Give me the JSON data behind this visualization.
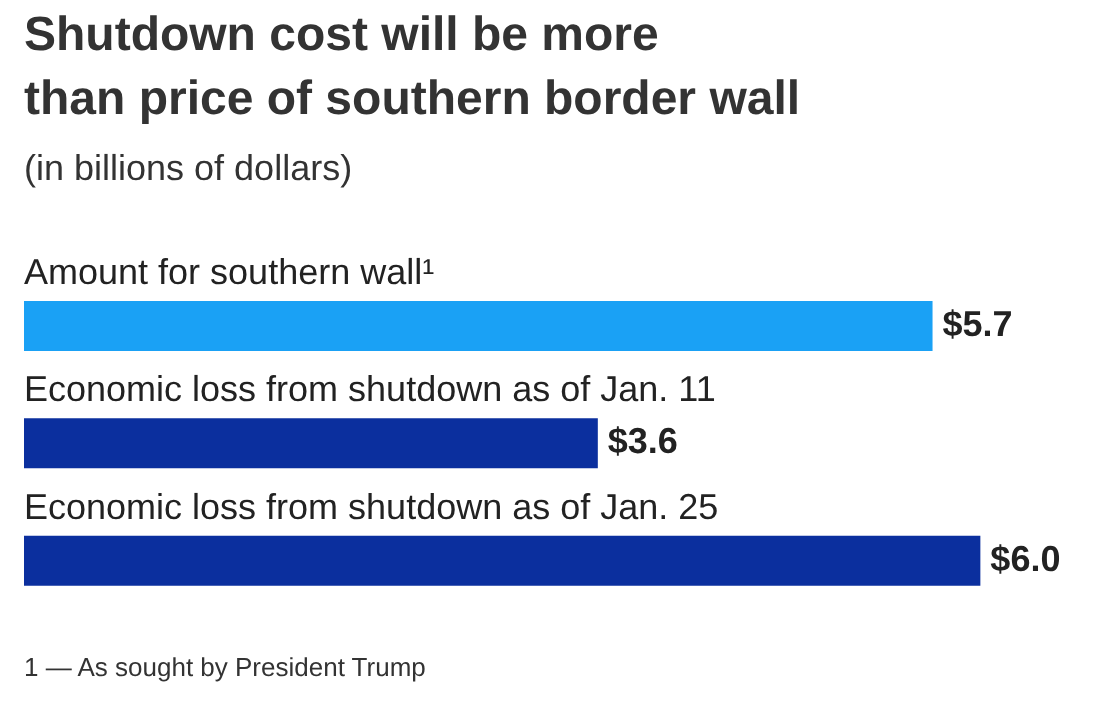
{
  "chart_data": {
    "type": "bar",
    "orientation": "horizontal",
    "title": "Shutdown cost will be more than price of southern border wall",
    "subtitle": "(in billions of dollars)",
    "categories": [
      "Amount for southern wall¹",
      "Economic loss from shutdown as of Jan. 11",
      "Economic loss from shutdown as of Jan. 25"
    ],
    "values": [
      5.7,
      3.6,
      6.0
    ],
    "colors": [
      "#1aa1f5",
      "#0b2f9e",
      "#0b2f9e"
    ],
    "value_labels": [
      "$5.7",
      "$3.6",
      "$6.0"
    ],
    "annotations": [
      "1 — As sought by President Trump"
    ]
  }
}
